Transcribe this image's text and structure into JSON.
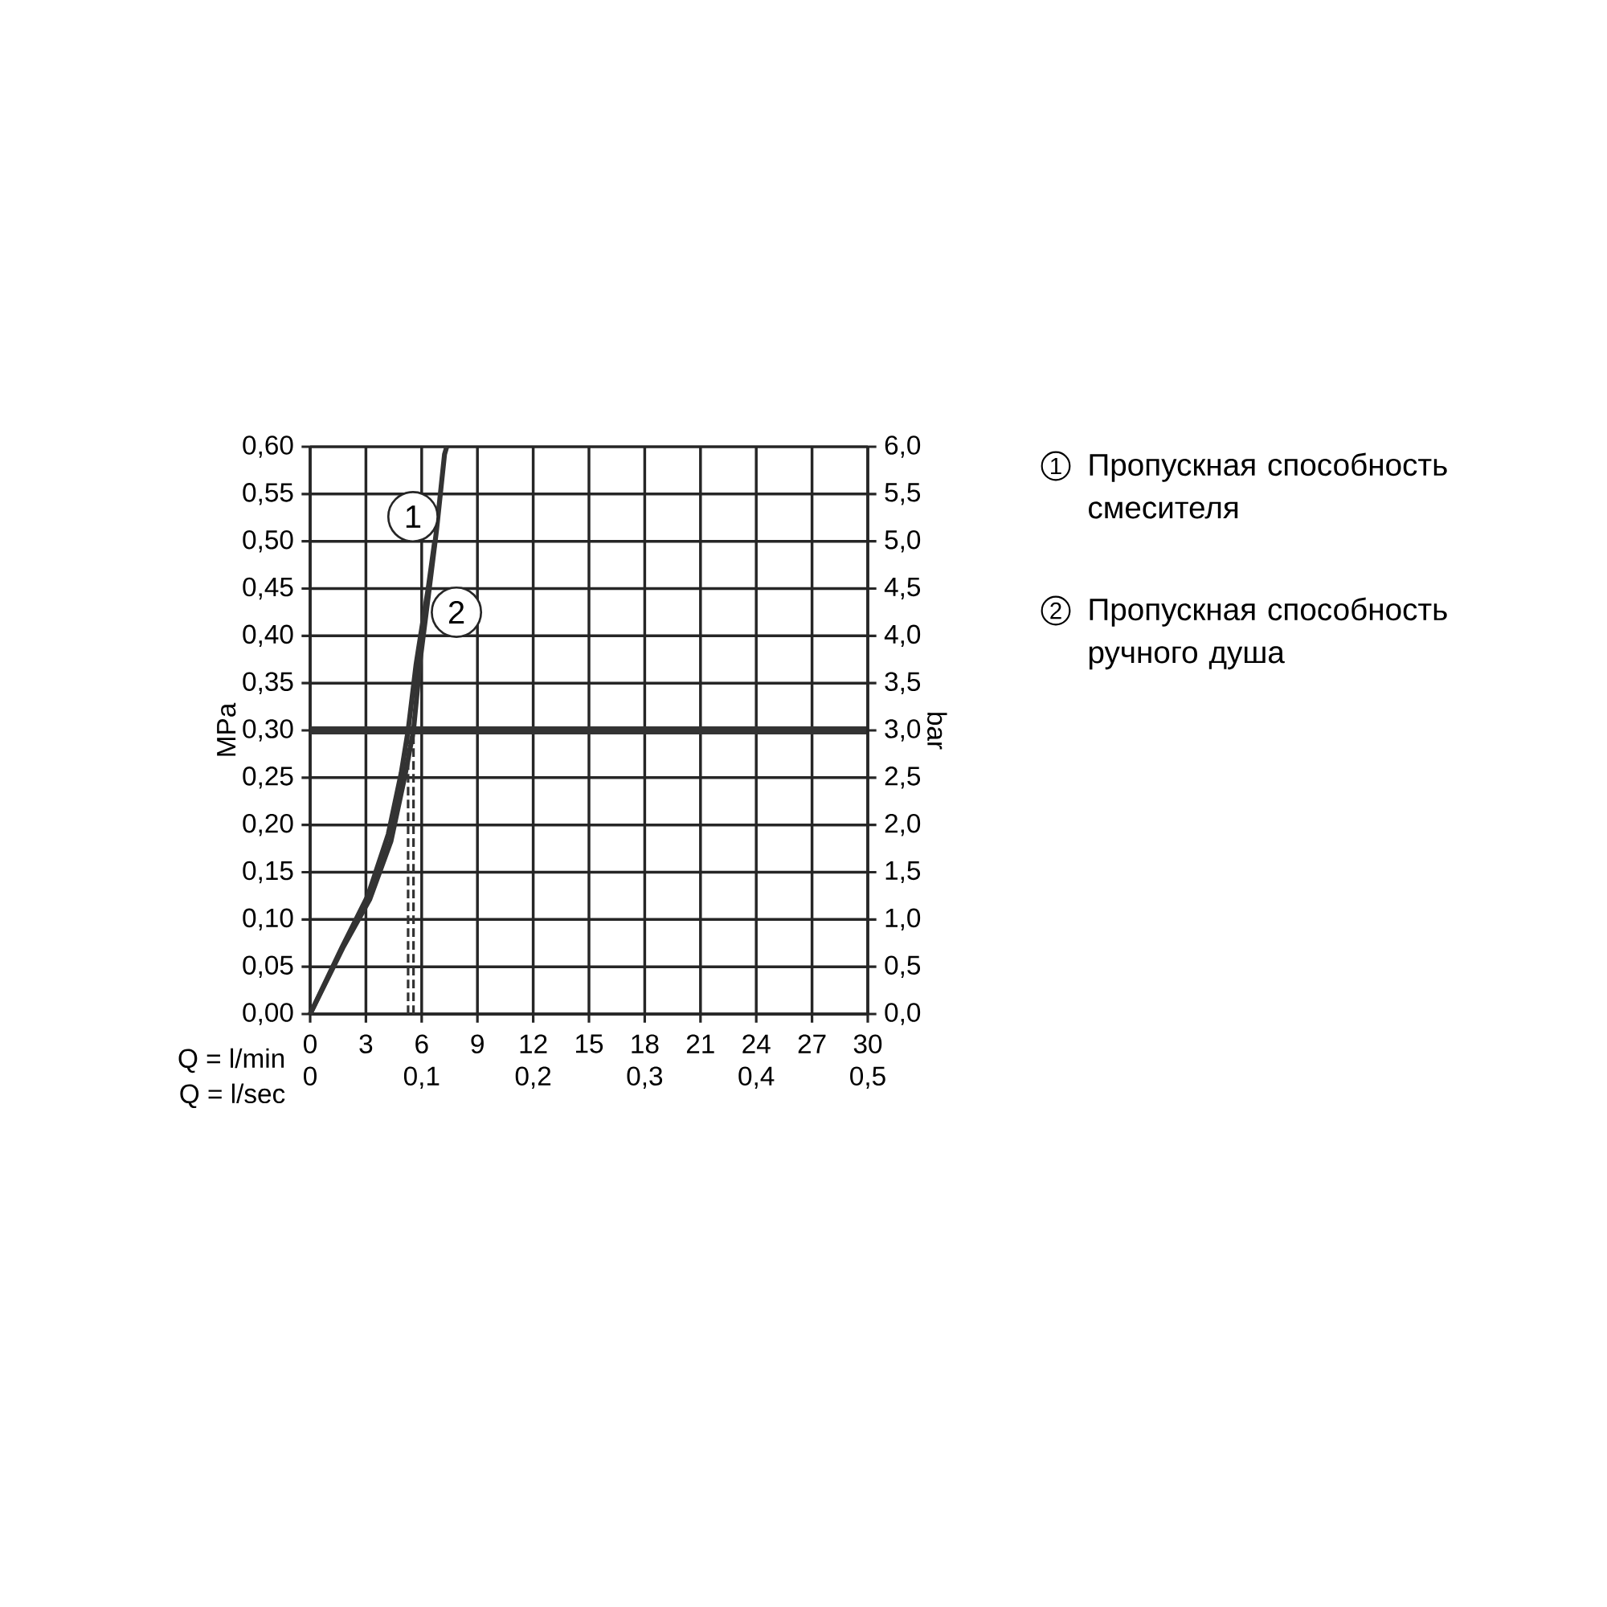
{
  "chart_data": {
    "type": "line",
    "xlabel": "Q = l/min",
    "ylabel": "MPa",
    "y2label": "bar",
    "x2label": "Q = l/sec",
    "xlim": [
      0,
      30
    ],
    "xticks": [
      0,
      3,
      6,
      9,
      12,
      15,
      18,
      21,
      24,
      27,
      30
    ],
    "x2lim": [
      0,
      0.5
    ],
    "x2ticks": [
      0,
      {
        "value": 0.1,
        "label": "0,1"
      },
      {
        "value": 0.2,
        "label": "0,2"
      },
      {
        "value": 0.3,
        "label": "0,3"
      },
      {
        "value": 0.4,
        "label": "0,4"
      },
      {
        "value": 0.5,
        "label": "0,5"
      }
    ],
    "ylim": [
      0,
      0.6
    ],
    "yticks": [
      {
        "value": 0,
        "label": "0,00"
      },
      {
        "value": 0.05,
        "label": "0,05"
      },
      {
        "value": 0.1,
        "label": "0,10"
      },
      {
        "value": 0.15,
        "label": "0,15"
      },
      {
        "value": 0.2,
        "label": "0,20"
      },
      {
        "value": 0.25,
        "label": "0,25"
      },
      {
        "value": 0.3,
        "label": "0,30"
      },
      {
        "value": 0.35,
        "label": "0,35"
      },
      {
        "value": 0.4,
        "label": "0,40"
      },
      {
        "value": 0.45,
        "label": "0,45"
      },
      {
        "value": 0.5,
        "label": "0,50"
      },
      {
        "value": 0.55,
        "label": "0,55"
      },
      {
        "value": 0.6,
        "label": "0,60"
      }
    ],
    "y2lim": [
      0,
      6
    ],
    "y2ticks": [
      {
        "value": 0,
        "label": "0,0"
      },
      {
        "value": 0.5,
        "label": "0,5"
      },
      {
        "value": 1,
        "label": "1,0"
      },
      {
        "value": 1.5,
        "label": "1,5"
      },
      {
        "value": 2,
        "label": "2,0"
      },
      {
        "value": 2.5,
        "label": "2,5"
      },
      {
        "value": 3,
        "label": "3,0"
      },
      {
        "value": 3.5,
        "label": "3,5"
      },
      {
        "value": 4,
        "label": "4,0"
      },
      {
        "value": 4.5,
        "label": "4,5"
      },
      {
        "value": 5,
        "label": "5,0"
      },
      {
        "value": 5.5,
        "label": "5,5"
      },
      {
        "value": 6,
        "label": "6,0"
      }
    ],
    "grid": true,
    "series": [
      {
        "color": "#333333",
        "x": [
          0,
          1.76,
          3.2,
          4.35,
          5.1,
          5.56,
          5.93,
          6.37,
          6.8,
          7.23,
          7.35
        ],
        "values": [
          0,
          0.07,
          0.121,
          0.183,
          0.252,
          0.3,
          0.376,
          0.444,
          0.512,
          0.592,
          0.6
        ]
      },
      {
        "color": "#333333",
        "x": [
          0,
          1.7,
          3.1,
          4.2,
          4.9,
          5.27,
          5.7,
          6.1,
          6.35,
          6.7
        ],
        "values": [
          0,
          0.07,
          0.125,
          0.19,
          0.255,
          0.3,
          0.37,
          0.42,
          0.45,
          0.5
        ]
      },
      {
        "color": "#333333",
        "line_style": "dashed",
        "x": [
          5.27,
          5.27
        ],
        "values": [
          0,
          0.3
        ]
      },
      {
        "color": "#333333",
        "line_style": "dashed",
        "x": [
          5.56,
          5.56
        ],
        "values": [
          0,
          0.3
        ]
      }
    ],
    "ref_lines": [
      {
        "axis": "y",
        "value": 0.3,
        "color": "#333333"
      }
    ],
    "annotations": [
      {
        "text": "1",
        "x": 5.53,
        "y": 0.526
      },
      {
        "text": "2",
        "x": 7.87,
        "y": 0.425
      },
      "Пропускная способность смесителя",
      "Пропускная способность ручного душа"
    ]
  }
}
